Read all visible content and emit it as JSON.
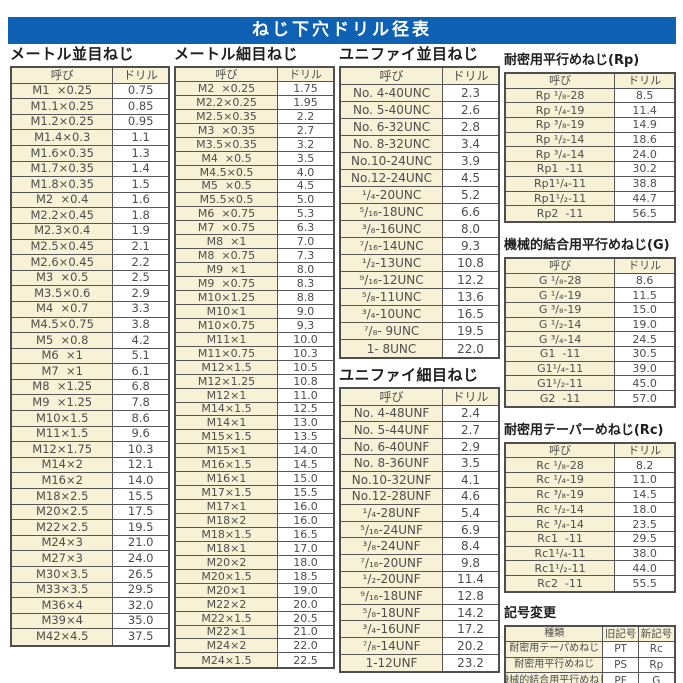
{
  "title": "ねじ下穴ドリル径表",
  "sections": {
    "metric_coarse": {
      "title": "メートル並目ねじ",
      "headers": [
        "呼び",
        "ドリル"
      ],
      "rows": [
        [
          "M1  ×0.25",
          "0.75"
        ],
        [
          "M1.1×0.25",
          "0.85"
        ],
        [
          "M1.2×0.25",
          "0.95"
        ],
        [
          "M1.4×0.3",
          "1.1"
        ],
        [
          "M1.6×0.35",
          "1.3"
        ],
        [
          "M1.7×0.35",
          "1.4"
        ],
        [
          "M1.8×0.35",
          "1.5"
        ],
        [
          "M2  ×0.4",
          "1.6"
        ],
        [
          "M2.2×0.45",
          "1.8"
        ],
        [
          "M2.3×0.4",
          "1.9"
        ],
        [
          "M2.5×0.45",
          "2.1"
        ],
        [
          "M2.6×0.45",
          "2.2"
        ],
        [
          "M3  ×0.5",
          "2.5"
        ],
        [
          "M3.5×0.6",
          "2.9"
        ],
        [
          "M4  ×0.7",
          "3.3"
        ],
        [
          "M4.5×0.75",
          "3.8"
        ],
        [
          "M5  ×0.8",
          "4.2"
        ],
        [
          "M6  ×1",
          "5.1"
        ],
        [
          "M7  ×1",
          "6.1"
        ],
        [
          "M8  ×1.25",
          "6.8"
        ],
        [
          "M9  ×1.25",
          "7.8"
        ],
        [
          "M10×1.5",
          "8.6"
        ],
        [
          "M11×1.5",
          "9.6"
        ],
        [
          "M12×1.75",
          "10.3"
        ],
        [
          "M14×2",
          "12.1"
        ],
        [
          "M16×2",
          "14.0"
        ],
        [
          "M18×2.5",
          "15.5"
        ],
        [
          "M20×2.5",
          "17.5"
        ],
        [
          "M22×2.5",
          "19.5"
        ],
        [
          "M24×3",
          "21.0"
        ],
        [
          "M27×3",
          "24.0"
        ],
        [
          "M30×3.5",
          "26.5"
        ],
        [
          "M33×3.5",
          "29.5"
        ],
        [
          "M36×4",
          "32.0"
        ],
        [
          "M39×4",
          "35.0"
        ],
        [
          "M42×4.5",
          "37.5"
        ]
      ]
    },
    "metric_fine": {
      "title": "メートル細目ねじ",
      "headers": [
        "呼び",
        "ドリル"
      ],
      "rows": [
        [
          "M2  ×0.25",
          "1.75"
        ],
        [
          "M2.2×0.25",
          "1.95"
        ],
        [
          "M2.5×0.35",
          "2.2"
        ],
        [
          "M3  ×0.35",
          "2.7"
        ],
        [
          "M3.5×0.35",
          "3.2"
        ],
        [
          "M4  ×0.5",
          "3.5"
        ],
        [
          "M4.5×0.5",
          "4.0"
        ],
        [
          "M5  ×0.5",
          "4.5"
        ],
        [
          "M5.5×0.5",
          "5.0"
        ],
        [
          "M6  ×0.75",
          "5.3"
        ],
        [
          "M7  ×0.75",
          "6.3"
        ],
        [
          "M8  ×1",
          "7.0"
        ],
        [
          "M8  ×0.75",
          "7.3"
        ],
        [
          "M9  ×1",
          "8.0"
        ],
        [
          "M9  ×0.75",
          "8.3"
        ],
        [
          "M10×1.25",
          "8.8"
        ],
        [
          "M10×1",
          "9.0"
        ],
        [
          "M10×0.75",
          "9.3"
        ],
        [
          "M11×1",
          "10.0"
        ],
        [
          "M11×0.75",
          "10.3"
        ],
        [
          "M12×1.5",
          "10.5"
        ],
        [
          "M12×1.25",
          "10.8"
        ],
        [
          "M12×1",
          "11.0"
        ],
        [
          "M14×1.5",
          "12.5"
        ],
        [
          "M14×1",
          "13.0"
        ],
        [
          "M15×1.5",
          "13.5"
        ],
        [
          "M15×1",
          "14.0"
        ],
        [
          "M16×1.5",
          "14.5"
        ],
        [
          "M16×1",
          "15.0"
        ],
        [
          "M17×1.5",
          "15.5"
        ],
        [
          "M17×1",
          "16.0"
        ],
        [
          "M18×2",
          "16.0"
        ],
        [
          "M18×1.5",
          "16.5"
        ],
        [
          "M18×1",
          "17.0"
        ],
        [
          "M20×2",
          "18.0"
        ],
        [
          "M20×1.5",
          "18.5"
        ],
        [
          "M20×1",
          "19.0"
        ],
        [
          "M22×2",
          "20.0"
        ],
        [
          "M22×1.5",
          "20.5"
        ],
        [
          "M22×1",
          "21.0"
        ],
        [
          "M24×2",
          "22.0"
        ],
        [
          "M24×1.5",
          "22.5"
        ]
      ]
    },
    "unc": {
      "title": "ユニファイ並目ねじ",
      "headers": [
        "呼び",
        "ドリル"
      ],
      "rows": [
        [
          "No. 4-40UNC",
          "2.3"
        ],
        [
          "No. 5-40UNC",
          "2.6"
        ],
        [
          "No. 6-32UNC",
          "2.8"
        ],
        [
          "No. 8-32UNC",
          "3.4"
        ],
        [
          "No.10-24UNC",
          "3.9"
        ],
        [
          "No.12-24UNC",
          "4.5"
        ],
        [
          "¹/₄-20UNC",
          "5.2"
        ],
        [
          "⁵/₁₆-18UNC",
          "6.6"
        ],
        [
          "³/₈-16UNC",
          "8.0"
        ],
        [
          "⁷/₁₆-14UNC",
          "9.3"
        ],
        [
          "¹/₂-13UNC",
          "10.8"
        ],
        [
          "⁹/₁₆-12UNC",
          "12.2"
        ],
        [
          "⁵/₈-11UNC",
          "13.6"
        ],
        [
          "³/₄-10UNC",
          "16.5"
        ],
        [
          "⁷/₈- 9UNC",
          "19.5"
        ],
        [
          "1- 8UNC",
          "22.0"
        ]
      ]
    },
    "unf": {
      "title": "ユニファイ細目ねじ",
      "headers": [
        "呼び",
        "ドリル"
      ],
      "rows": [
        [
          "No. 4-48UNF",
          "2.4"
        ],
        [
          "No. 5-44UNF",
          "2.7"
        ],
        [
          "No. 6-40UNF",
          "2.9"
        ],
        [
          "No. 8-36UNF",
          "3.5"
        ],
        [
          "No.10-32UNF",
          "4.1"
        ],
        [
          "No.12-28UNF",
          "4.6"
        ],
        [
          "¹/₄-28UNF",
          "5.4"
        ],
        [
          "⁵/₁₆-24UNF",
          "6.9"
        ],
        [
          "³/₈-24UNF",
          "8.4"
        ],
        [
          "⁷/₁₆-20UNF",
          "9.8"
        ],
        [
          "¹/₂-20UNF",
          "11.4"
        ],
        [
          "⁹/₁₆-18UNF",
          "12.8"
        ],
        [
          "⁵/₈-18UNF",
          "14.2"
        ],
        [
          "³/₄-16UNF",
          "17.2"
        ],
        [
          "⁷/₈-14UNF",
          "20.2"
        ],
        [
          "1-12UNF",
          "23.2"
        ]
      ]
    },
    "rp": {
      "title": "耐密用平行めねじ(Rp)",
      "headers": [
        "呼び",
        "ドリル"
      ],
      "rows": [
        [
          "Rp ¹/₈-28",
          "8.5"
        ],
        [
          "Rp ¹/₄-19",
          "11.4"
        ],
        [
          "Rp ³/₈-19",
          "14.9"
        ],
        [
          "Rp ¹/₂-14",
          "18.6"
        ],
        [
          "Rp ³/₄-14",
          "24.0"
        ],
        [
          "Rp1  -11",
          "30.2"
        ],
        [
          "Rp1¹/₄-11",
          "38.8"
        ],
        [
          "Rp1¹/₂-11",
          "44.7"
        ],
        [
          "Rp2  -11",
          "56.5"
        ]
      ]
    },
    "g": {
      "title": "機械的結合用平行めねじ(G)",
      "headers": [
        "呼び",
        "ドリル"
      ],
      "rows": [
        [
          "G ¹/₈-28",
          "8.6"
        ],
        [
          "G ¹/₄-19",
          "11.5"
        ],
        [
          "G ³/₈-19",
          "15.0"
        ],
        [
          "G ¹/₂-14",
          "19.0"
        ],
        [
          "G ³/₄-14",
          "24.5"
        ],
        [
          "G1  -11",
          "30.5"
        ],
        [
          "G1¹/₄-11",
          "39.0"
        ],
        [
          "G1¹/₂-11",
          "45.0"
        ],
        [
          "G2  -11",
          "57.0"
        ]
      ]
    },
    "rc": {
      "title": "耐密用テーパーめねじ(Rc)",
      "headers": [
        "呼び",
        "ドリル"
      ],
      "rows": [
        [
          "Rc ¹/₈-28",
          "8.2"
        ],
        [
          "Rc ¹/₄-19",
          "11.0"
        ],
        [
          "Rc ³/₈-19",
          "14.5"
        ],
        [
          "Rc ¹/₂-14",
          "18.0"
        ],
        [
          "Rc ³/₄-14",
          "23.5"
        ],
        [
          "Rc1  -11",
          "29.5"
        ],
        [
          "Rc1¹/₄-11",
          "38.0"
        ],
        [
          "Rc1¹/₂-11",
          "44.0"
        ],
        [
          "Rc2  -11",
          "55.5"
        ]
      ]
    },
    "symbol_change": {
      "title": "記号変更",
      "headers": [
        "種類",
        "旧記号",
        "新記号"
      ],
      "rows": [
        [
          "耐密用テーパめねじ",
          "PT",
          "Rc"
        ],
        [
          "耐密用平行めねじ",
          "PS",
          "Rp"
        ],
        [
          "機械的結合用平行めねじ",
          "PF",
          "G"
        ]
      ]
    }
  },
  "colors": {
    "title_bar": "#0e61b3",
    "cell_cream": "#f7f2d5",
    "border": "#4f4f4f",
    "text": "#4d4d4d"
  }
}
